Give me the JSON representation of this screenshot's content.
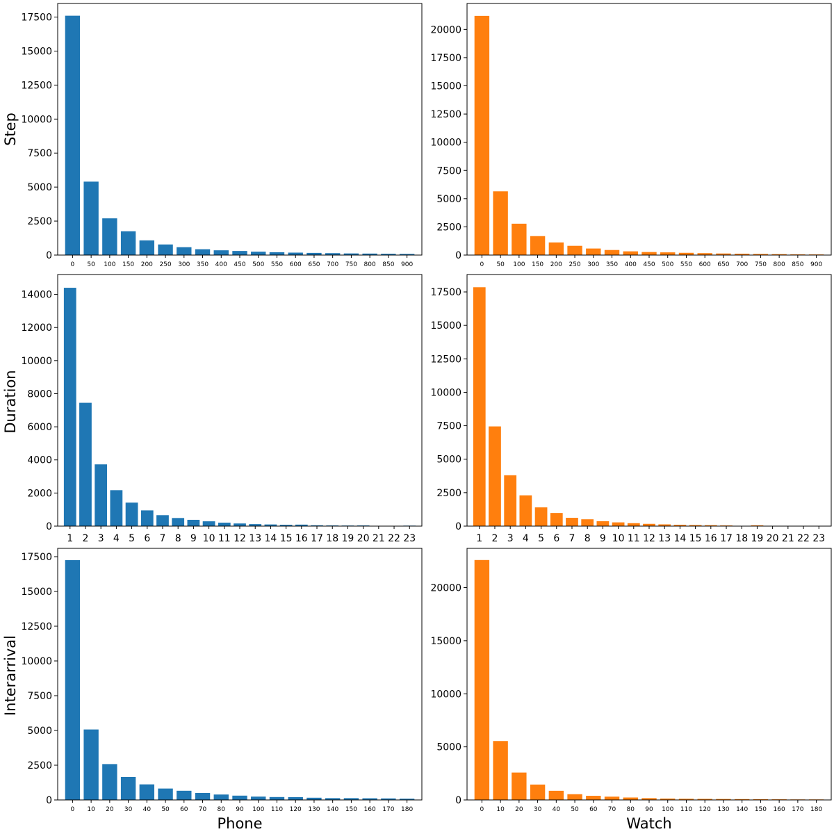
{
  "labels": {
    "rows": [
      "Step",
      "Duration",
      "Interarrival"
    ],
    "columns": [
      "Phone",
      "Watch"
    ]
  },
  "colors": {
    "phone": "#1f77b4",
    "watch": "#ff7f0e"
  },
  "chart_data": [
    {
      "type": "bar",
      "row": "Step",
      "column": "Phone",
      "categories": [
        "0",
        "50",
        "100",
        "150",
        "200",
        "250",
        "300",
        "350",
        "400",
        "450",
        "500",
        "550",
        "600",
        "650",
        "700",
        "750",
        "800",
        "850",
        "900"
      ],
      "values": [
        17600,
        5400,
        2700,
        1750,
        1080,
        780,
        580,
        430,
        350,
        300,
        250,
        210,
        180,
        160,
        140,
        120,
        110,
        95,
        85
      ],
      "ylim": [
        0,
        18500
      ],
      "yticks": [
        0,
        2500,
        5000,
        7500,
        10000,
        12500,
        15000,
        17500
      ],
      "xlabel": "",
      "ylabel": "Step"
    },
    {
      "type": "bar",
      "row": "Step",
      "column": "Watch",
      "categories": [
        "0",
        "50",
        "100",
        "150",
        "200",
        "250",
        "300",
        "350",
        "400",
        "450",
        "500",
        "550",
        "600",
        "650",
        "700",
        "750",
        "800",
        "850",
        "900"
      ],
      "values": [
        21200,
        5650,
        2780,
        1680,
        1120,
        820,
        580,
        450,
        330,
        270,
        240,
        200,
        170,
        140,
        120,
        100,
        80,
        60,
        55
      ],
      "ylim": [
        0,
        22300
      ],
      "yticks": [
        0,
        2500,
        5000,
        7500,
        10000,
        12500,
        15000,
        17500,
        20000
      ],
      "xlabel": "",
      "ylabel": ""
    },
    {
      "type": "bar",
      "row": "Duration",
      "column": "Phone",
      "categories": [
        "1",
        "2",
        "3",
        "4",
        "5",
        "6",
        "7",
        "8",
        "9",
        "10",
        "11",
        "12",
        "13",
        "14",
        "15",
        "16",
        "17",
        "18",
        "19",
        "20",
        "21",
        "22",
        "23"
      ],
      "values": [
        14400,
        7450,
        3730,
        2170,
        1420,
        950,
        660,
        490,
        380,
        290,
        210,
        160,
        120,
        100,
        80,
        90,
        50,
        40,
        35,
        40,
        10,
        5,
        30
      ],
      "ylim": [
        0,
        15200
      ],
      "yticks": [
        0,
        2000,
        4000,
        6000,
        8000,
        10000,
        12000,
        14000
      ],
      "xlabel": "",
      "ylabel": "Duration"
    },
    {
      "type": "bar",
      "row": "Duration",
      "column": "Watch",
      "categories": [
        "1",
        "2",
        "3",
        "4",
        "5",
        "6",
        "7",
        "8",
        "9",
        "10",
        "11",
        "12",
        "13",
        "14",
        "15",
        "16",
        "17",
        "18",
        "19",
        "20",
        "21",
        "22",
        "23"
      ],
      "values": [
        17850,
        7450,
        3800,
        2300,
        1400,
        980,
        620,
        510,
        370,
        280,
        220,
        170,
        130,
        100,
        80,
        70,
        50,
        20,
        60,
        10,
        5,
        5,
        5
      ],
      "ylim": [
        0,
        18800
      ],
      "yticks": [
        0,
        2500,
        5000,
        7500,
        10000,
        12500,
        15000,
        17500
      ],
      "xlabel": "",
      "ylabel": ""
    },
    {
      "type": "bar",
      "row": "Interarrival",
      "column": "Phone",
      "categories": [
        "0",
        "10",
        "20",
        "30",
        "40",
        "50",
        "60",
        "70",
        "80",
        "90",
        "100",
        "110",
        "120",
        "130",
        "140",
        "150",
        "160",
        "170",
        "180"
      ],
      "values": [
        17250,
        5070,
        2580,
        1650,
        1120,
        820,
        660,
        500,
        390,
        310,
        240,
        210,
        200,
        160,
        130,
        130,
        120,
        110,
        90
      ],
      "ylim": [
        0,
        18100
      ],
      "yticks": [
        0,
        2500,
        5000,
        7500,
        10000,
        12500,
        15000,
        17500
      ],
      "xlabel": "Phone",
      "ylabel": "Interarrival"
    },
    {
      "type": "bar",
      "row": "Interarrival",
      "column": "Watch",
      "categories": [
        "0",
        "10",
        "20",
        "30",
        "40",
        "50",
        "60",
        "70",
        "80",
        "90",
        "100",
        "110",
        "120",
        "130",
        "140",
        "150",
        "160",
        "170",
        "180"
      ],
      "values": [
        22600,
        5550,
        2580,
        1450,
        860,
        540,
        390,
        310,
        230,
        170,
        130,
        110,
        100,
        90,
        80,
        70,
        60,
        50,
        50
      ],
      "ylim": [
        0,
        23700
      ],
      "yticks": [
        0,
        5000,
        10000,
        15000,
        20000
      ],
      "xlabel": "Watch",
      "ylabel": ""
    }
  ]
}
